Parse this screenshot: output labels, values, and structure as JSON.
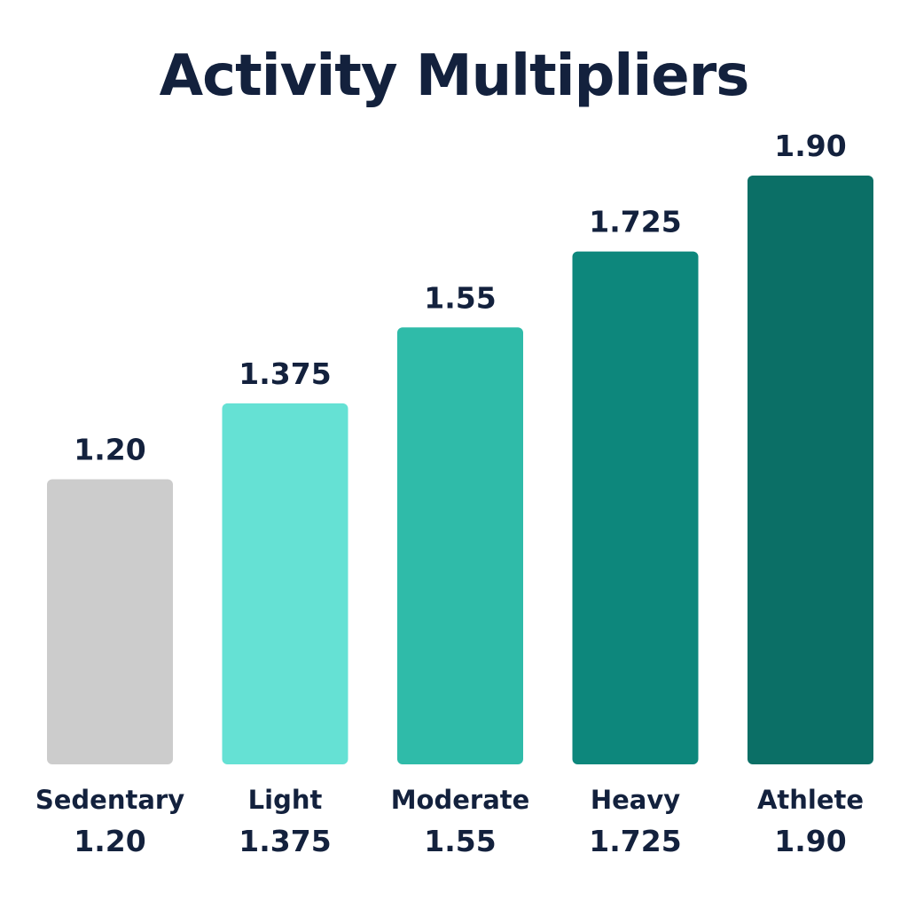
{
  "chart_data": {
    "type": "bar",
    "title": "Activity Multipliers",
    "categories": [
      "Sedentary",
      "Light",
      "Moderate",
      "Heavy",
      "Athlete"
    ],
    "values": [
      1.2,
      1.375,
      1.55,
      1.725,
      1.9
    ],
    "value_labels": [
      "1.20",
      "1.375",
      "1.55",
      "1.725",
      "1.90"
    ],
    "colors": [
      "#cccccc",
      "#65e1d4",
      "#2fbba9",
      "#0d877c",
      "#0b6f66"
    ],
    "xlabel": "",
    "ylabel": "",
    "ylim": [
      0.543,
      1.9
    ],
    "grid": false,
    "legend": "none"
  }
}
